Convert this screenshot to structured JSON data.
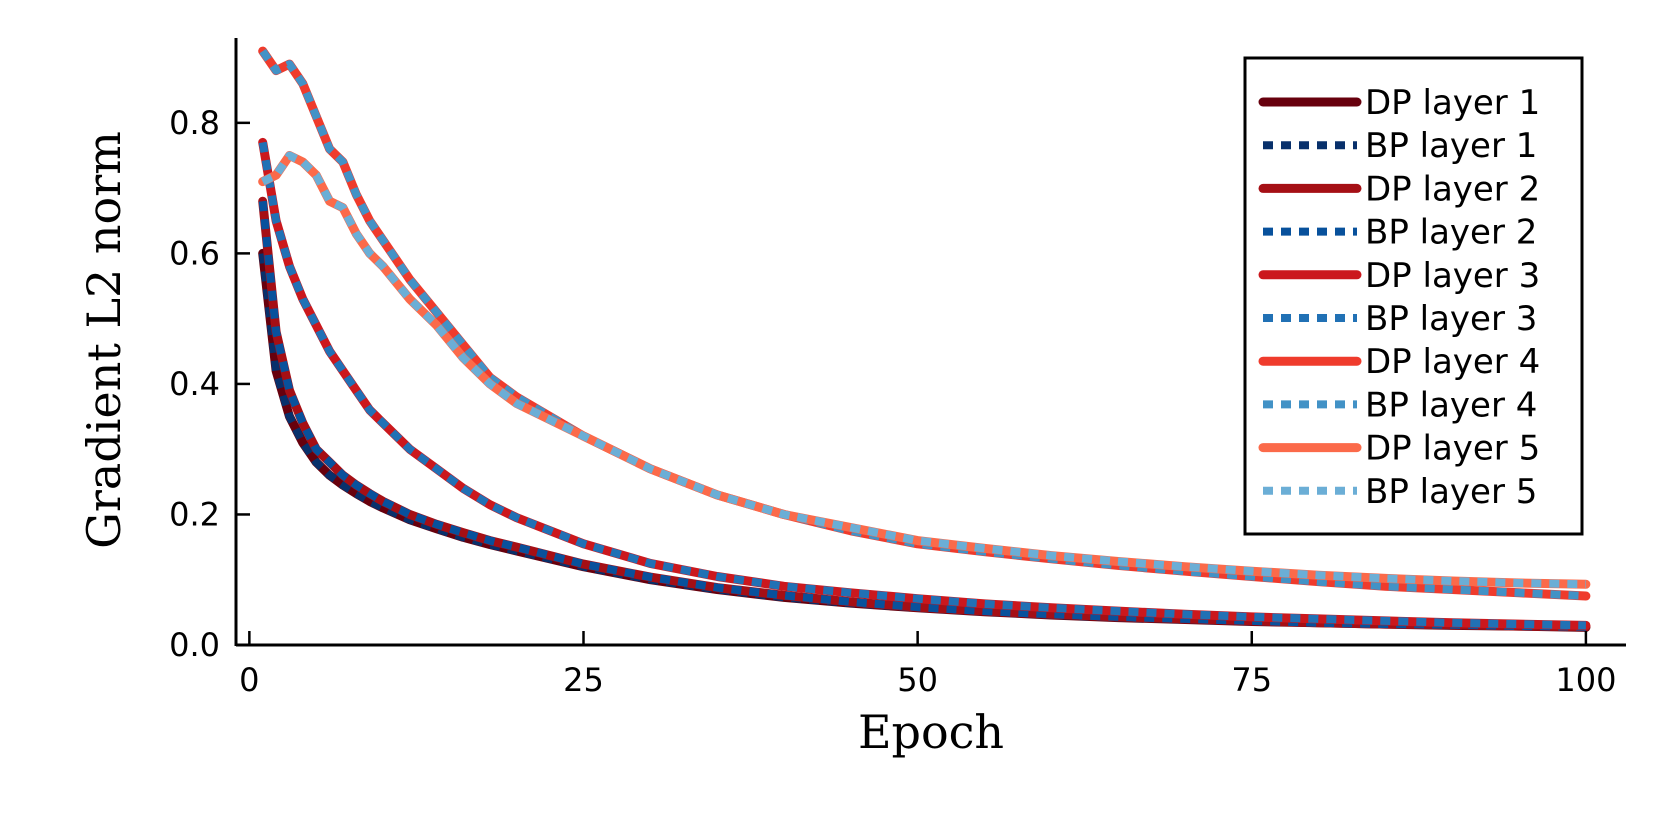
{
  "chart_data": {
    "type": "line",
    "title": "",
    "xlabel": "Epoch",
    "ylabel": "Gradient L2 norm",
    "xlim": [
      -1,
      103
    ],
    "ylim": [
      0,
      0.93
    ],
    "xticks": [
      0,
      25,
      50,
      75,
      100
    ],
    "xtick_labels": [
      "0",
      "25",
      "50",
      "75",
      "100"
    ],
    "yticks": [
      0.0,
      0.2,
      0.4,
      0.6,
      0.8
    ],
    "ytick_labels": [
      "0.0",
      "0.2",
      "0.4",
      "0.6",
      "0.8"
    ],
    "grid": false,
    "legend_position": "top-right",
    "x": [
      1,
      2,
      3,
      4,
      5,
      6,
      7,
      8,
      9,
      10,
      12,
      14,
      16,
      18,
      20,
      25,
      30,
      35,
      40,
      45,
      50,
      55,
      60,
      65,
      70,
      75,
      80,
      85,
      90,
      95,
      100
    ],
    "series": [
      {
        "name": "DP layer 1",
        "style": "solid",
        "color": "#67000d",
        "values": [
          0.6,
          0.42,
          0.35,
          0.31,
          0.28,
          0.26,
          0.245,
          0.232,
          0.22,
          0.21,
          0.192,
          0.178,
          0.165,
          0.154,
          0.144,
          0.12,
          0.1,
          0.085,
          0.073,
          0.064,
          0.057,
          0.051,
          0.046,
          0.042,
          0.039,
          0.036,
          0.034,
          0.032,
          0.03,
          0.029,
          0.027
        ]
      },
      {
        "name": "BP layer 1",
        "style": "dashed",
        "color": "#08306b",
        "values": [
          0.6,
          0.42,
          0.35,
          0.31,
          0.28,
          0.26,
          0.245,
          0.232,
          0.22,
          0.21,
          0.192,
          0.178,
          0.165,
          0.154,
          0.144,
          0.12,
          0.1,
          0.085,
          0.073,
          0.064,
          0.057,
          0.051,
          0.046,
          0.042,
          0.039,
          0.036,
          0.034,
          0.032,
          0.03,
          0.029,
          0.027
        ]
      },
      {
        "name": "DP layer 2",
        "style": "solid",
        "color": "#a50f15",
        "values": [
          0.68,
          0.48,
          0.39,
          0.34,
          0.3,
          0.28,
          0.26,
          0.245,
          0.232,
          0.22,
          0.2,
          0.185,
          0.172,
          0.16,
          0.15,
          0.124,
          0.104,
          0.088,
          0.076,
          0.066,
          0.058,
          0.052,
          0.047,
          0.043,
          0.04,
          0.037,
          0.034,
          0.032,
          0.031,
          0.029,
          0.028
        ]
      },
      {
        "name": "BP layer 2",
        "style": "dashed",
        "color": "#08519c",
        "values": [
          0.68,
          0.48,
          0.39,
          0.34,
          0.3,
          0.28,
          0.26,
          0.245,
          0.232,
          0.22,
          0.2,
          0.185,
          0.172,
          0.16,
          0.15,
          0.124,
          0.104,
          0.088,
          0.076,
          0.066,
          0.058,
          0.052,
          0.047,
          0.043,
          0.04,
          0.037,
          0.034,
          0.032,
          0.031,
          0.029,
          0.028
        ]
      },
      {
        "name": "DP layer 3",
        "style": "solid",
        "color": "#cb181d",
        "values": [
          0.77,
          0.65,
          0.58,
          0.53,
          0.49,
          0.45,
          0.42,
          0.39,
          0.36,
          0.34,
          0.3,
          0.27,
          0.24,
          0.215,
          0.195,
          0.155,
          0.125,
          0.105,
          0.09,
          0.08,
          0.071,
          0.063,
          0.057,
          0.052,
          0.047,
          0.043,
          0.04,
          0.037,
          0.034,
          0.032,
          0.03
        ]
      },
      {
        "name": "BP layer 3",
        "style": "dashed",
        "color": "#2171b5",
        "values": [
          0.77,
          0.65,
          0.58,
          0.53,
          0.49,
          0.45,
          0.42,
          0.39,
          0.36,
          0.34,
          0.3,
          0.27,
          0.24,
          0.215,
          0.195,
          0.155,
          0.125,
          0.105,
          0.09,
          0.08,
          0.071,
          0.063,
          0.057,
          0.052,
          0.047,
          0.043,
          0.04,
          0.037,
          0.034,
          0.032,
          0.03
        ]
      },
      {
        "name": "DP layer 4",
        "style": "solid",
        "color": "#ef3b2c",
        "values": [
          0.91,
          0.88,
          0.89,
          0.86,
          0.81,
          0.76,
          0.74,
          0.69,
          0.65,
          0.62,
          0.56,
          0.51,
          0.46,
          0.41,
          0.38,
          0.32,
          0.27,
          0.23,
          0.2,
          0.175,
          0.155,
          0.143,
          0.132,
          0.122,
          0.113,
          0.105,
          0.097,
          0.09,
          0.085,
          0.08,
          0.075
        ]
      },
      {
        "name": "BP layer 4",
        "style": "dashed",
        "color": "#4292c6",
        "values": [
          0.91,
          0.88,
          0.89,
          0.86,
          0.81,
          0.76,
          0.74,
          0.69,
          0.65,
          0.62,
          0.56,
          0.51,
          0.46,
          0.41,
          0.38,
          0.32,
          0.27,
          0.23,
          0.2,
          0.175,
          0.155,
          0.143,
          0.132,
          0.122,
          0.113,
          0.105,
          0.097,
          0.09,
          0.085,
          0.08,
          0.075
        ]
      },
      {
        "name": "DP layer 5",
        "style": "solid",
        "color": "#fb6a4a",
        "values": [
          0.71,
          0.72,
          0.75,
          0.74,
          0.72,
          0.68,
          0.67,
          0.63,
          0.6,
          0.58,
          0.53,
          0.49,
          0.44,
          0.4,
          0.37,
          0.32,
          0.27,
          0.23,
          0.2,
          0.18,
          0.16,
          0.148,
          0.137,
          0.128,
          0.12,
          0.113,
          0.107,
          0.102,
          0.098,
          0.095,
          0.093
        ]
      },
      {
        "name": "BP layer 5",
        "style": "dashed",
        "color": "#6baed6",
        "values": [
          0.71,
          0.72,
          0.75,
          0.74,
          0.72,
          0.68,
          0.67,
          0.63,
          0.6,
          0.58,
          0.53,
          0.49,
          0.44,
          0.4,
          0.37,
          0.32,
          0.27,
          0.23,
          0.2,
          0.18,
          0.16,
          0.148,
          0.137,
          0.128,
          0.12,
          0.113,
          0.107,
          0.102,
          0.098,
          0.095,
          0.093
        ]
      }
    ]
  }
}
